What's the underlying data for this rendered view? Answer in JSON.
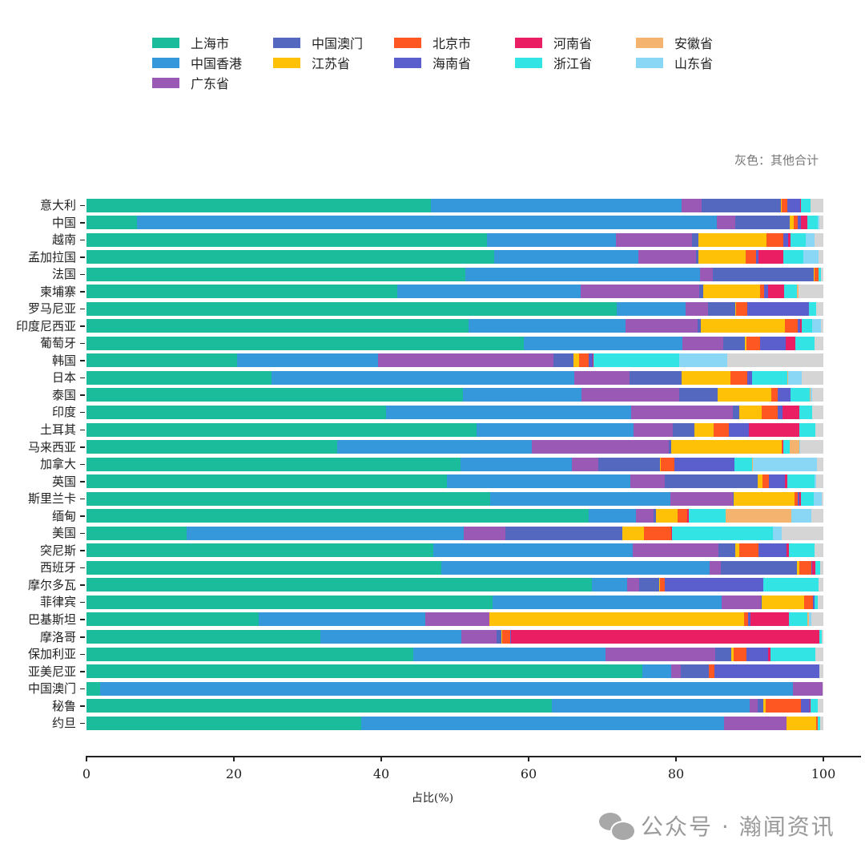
{
  "legend": {
    "items": [
      {
        "label": "上海市",
        "color": "#1abc9c"
      },
      {
        "label": "中国香港",
        "color": "#3498db"
      },
      {
        "label": "广东省",
        "color": "#9b59b6"
      },
      {
        "label": "中国澳门",
        "color": "#5468c0"
      },
      {
        "label": "江苏省",
        "color": "#ffc107"
      },
      {
        "label": "北京市",
        "color": "#ff5722"
      },
      {
        "label": "海南省",
        "color": "#5a5fcd"
      },
      {
        "label": "河南省",
        "color": "#e91e63"
      },
      {
        "label": "浙江省",
        "color": "#33e4e4"
      },
      {
        "label": "安徽省",
        "color": "#f4b470"
      },
      {
        "label": "山东省",
        "color": "#8ad6f5"
      }
    ]
  },
  "note": "灰色：其他合计",
  "other_color": "#d5d5d5",
  "watermark": "公众号 · 瀚闻资讯",
  "chart_data": {
    "type": "bar",
    "orientation": "horizontal",
    "stacked": true,
    "title": "",
    "xlabel": "占比(%)",
    "ylabel": "",
    "xlim": [
      0,
      100
    ],
    "xticks": [
      "0",
      "20",
      "40",
      "60",
      "80",
      "100"
    ],
    "annotation": "灰色：其他合计",
    "legend_position": "top",
    "grid": false,
    "categories": [
      "意大利",
      "中国",
      "越南",
      "孟加拉国",
      "法国",
      "柬埔寨",
      "罗马尼亚",
      "印度尼西亚",
      "葡萄牙",
      "韩国",
      "日本",
      "泰国",
      "印度",
      "土耳其",
      "马来西亚",
      "加拿大",
      "英国",
      "斯里兰卡",
      "缅甸",
      "美国",
      "突尼斯",
      "西班牙",
      "摩尔多瓦",
      "菲律宾",
      "巴基斯坦",
      "摩洛哥",
      "保加利亚",
      "亚美尼亚",
      "中国澳门",
      "秘鲁",
      "约旦"
    ],
    "series": [
      {
        "name": "上海市",
        "values": [
          46.7,
          6.8,
          54.4,
          55.3,
          51.4,
          42.2,
          72.0,
          51.8,
          59.4,
          20.4,
          25.1,
          51.1,
          40.7,
          52.9,
          34.0,
          50.8,
          48.9,
          54.8,
          68.2,
          13.6,
          47.1,
          48.1,
          68.6,
          55.1,
          23.4,
          31.7,
          44.4,
          75.4,
          1.9,
          63.1,
          37.3
        ]
      },
      {
        "name": "中国香港",
        "values": [
          34.1,
          78.7,
          17.5,
          19.6,
          31.9,
          24.9,
          9.3,
          21.3,
          21.5,
          19.2,
          41.1,
          16.1,
          33.2,
          21.3,
          26.4,
          15.1,
          24.9,
          24.4,
          6.4,
          37.6,
          27.0,
          36.5,
          4.8,
          31.1,
          22.6,
          19.2,
          26.0,
          4.0,
          94.0,
          26.9,
          49.2
        ]
      },
      {
        "name": "广东省",
        "values": [
          2.7,
          2.5,
          10.3,
          7.8,
          1.7,
          16.1,
          3.0,
          9.8,
          5.5,
          23.8,
          7.5,
          13.2,
          13.8,
          5.4,
          18.6,
          3.6,
          4.7,
          8.5,
          2.4,
          5.6,
          11.7,
          1.5,
          1.6,
          5.3,
          8.7,
          4.8,
          14.9,
          1.3,
          4.0,
          1.1,
          8.5
        ]
      },
      {
        "name": "中国澳门",
        "values": [
          10.7,
          7.4,
          0.9,
          0.3,
          13.7,
          0.5,
          3.8,
          0.5,
          2.9,
          2.7,
          7.1,
          5.3,
          0.9,
          2.9,
          0.4,
          8.3,
          12.6,
          0.1,
          0.3,
          15.9,
          2.2,
          10.3,
          2.7,
          0.1,
          0.0,
          0.6,
          2.2,
          3.8,
          0.0,
          0.8,
          0.0
        ]
      },
      {
        "name": "江苏省",
        "values": [
          0.2,
          0.6,
          9.2,
          6.5,
          0.1,
          7.7,
          0.1,
          11.4,
          0.3,
          0.8,
          6.6,
          7.2,
          3.0,
          2.6,
          14.9,
          0.1,
          0.6,
          8.3,
          2.9,
          3.0,
          0.6,
          0.3,
          0.1,
          5.8,
          34.5,
          0.1,
          0.3,
          0.0,
          0.0,
          0.3,
          4.0
        ]
      },
      {
        "name": "北京市",
        "values": [
          0.7,
          0.5,
          2.3,
          1.4,
          0.5,
          0.6,
          1.5,
          1.7,
          1.8,
          1.3,
          2.3,
          0.9,
          2.2,
          2.1,
          0.2,
          1.9,
          0.9,
          0.4,
          1.3,
          3.7,
          2.6,
          1.7,
          0.7,
          1.2,
          0.6,
          1.1,
          1.8,
          0.7,
          0.0,
          4.8,
          0.2
        ]
      },
      {
        "name": "海南省",
        "values": [
          1.7,
          0.5,
          0.6,
          0.3,
          0.0,
          0.5,
          8.3,
          0.4,
          3.5,
          0.5,
          0.6,
          1.7,
          0.7,
          2.7,
          0.0,
          8.1,
          2.2,
          0.2,
          0.0,
          0.0,
          3.8,
          0.1,
          13.4,
          0.2,
          0.3,
          0.1,
          2.9,
          14.3,
          0.0,
          1.2,
          0.0
        ]
      },
      {
        "name": "河南省",
        "values": [
          0.2,
          0.8,
          0.4,
          3.4,
          0.0,
          2.2,
          0.0,
          0.2,
          1.3,
          0.1,
          0.0,
          0.0,
          2.2,
          6.8,
          0.1,
          0.0,
          0.3,
          0.3,
          0.2,
          0.1,
          0.3,
          0.4,
          0.0,
          0.0,
          5.2,
          41.9,
          0.3,
          0.0,
          0.0,
          0.1,
          0.0
        ]
      },
      {
        "name": "浙江省",
        "values": [
          1.3,
          1.4,
          2.0,
          2.7,
          0.4,
          1.7,
          1.0,
          1.4,
          2.6,
          11.6,
          4.8,
          2.7,
          1.8,
          2.2,
          0.8,
          2.4,
          3.7,
          1.7,
          5.0,
          13.7,
          3.5,
          0.7,
          7.5,
          0.5,
          2.5,
          0.3,
          6.1,
          0.0,
          0.0,
          1.0,
          0.4
        ]
      },
      {
        "name": "安徽省",
        "values": [
          0.0,
          0.0,
          0.0,
          0.0,
          0.0,
          0.2,
          0.0,
          0.0,
          0.0,
          0.0,
          0.1,
          0.1,
          0.0,
          0.0,
          1.3,
          0.1,
          0.0,
          0.0,
          9.0,
          0.0,
          0.0,
          0.0,
          0.0,
          0.0,
          0.2,
          0.0,
          0.0,
          0.0,
          0.0,
          0.0,
          0.0
        ]
      },
      {
        "name": "山东省",
        "values": [
          0.0,
          0.3,
          1.2,
          2.1,
          0.0,
          0.0,
          0.0,
          1.2,
          0.0,
          6.6,
          1.9,
          0.2,
          0.0,
          0.0,
          0.2,
          8.7,
          0.2,
          1.1,
          2.7,
          1.2,
          0.0,
          0.0,
          0.0,
          0.0,
          0.4,
          0.0,
          0.0,
          0.0,
          0.0,
          0.0,
          0.0
        ]
      },
      {
        "name": "其他合计",
        "values": [
          1.7,
          0.5,
          1.2,
          0.6,
          0.3,
          3.4,
          1.0,
          0.3,
          1.2,
          13.0,
          2.9,
          1.5,
          1.5,
          1.1,
          3.1,
          0.9,
          1.0,
          0.2,
          1.6,
          5.6,
          1.2,
          0.4,
          0.6,
          0.7,
          1.6,
          0.2,
          1.1,
          0.5,
          0.1,
          0.7,
          0.4
        ]
      }
    ]
  }
}
